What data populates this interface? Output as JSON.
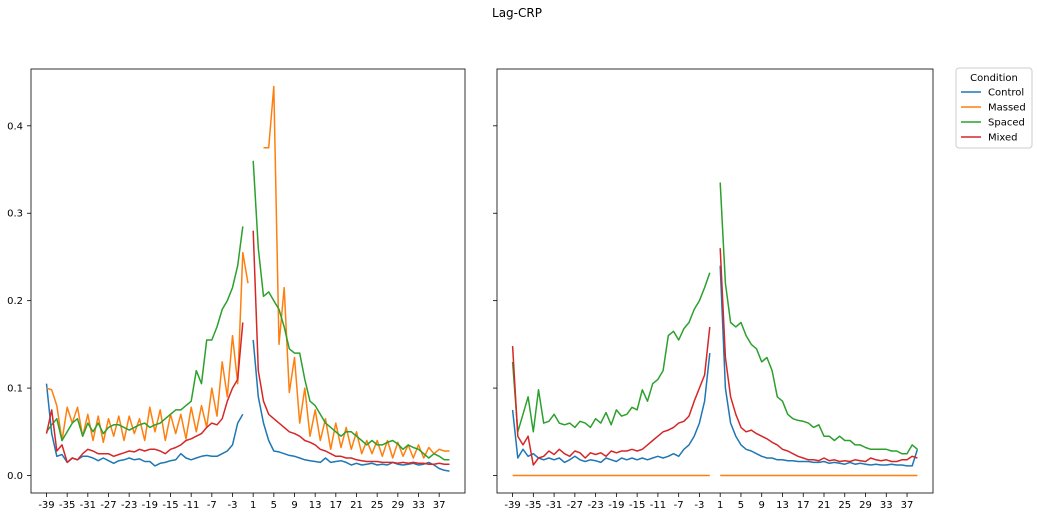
{
  "figure": {
    "title": "Lag-CRP"
  },
  "legend": {
    "title": "Condition",
    "placement": "outside upper-right"
  },
  "chart_data": [
    {
      "type": "line",
      "title": "",
      "xlabel": "",
      "ylabel": "",
      "x": [
        -39,
        -38,
        -37,
        -36,
        -35,
        -34,
        -33,
        -32,
        -31,
        -30,
        -29,
        -28,
        -27,
        -26,
        -25,
        -24,
        -23,
        -22,
        -21,
        -20,
        -19,
        -18,
        -17,
        -16,
        -15,
        -14,
        -13,
        -12,
        -11,
        -10,
        -9,
        -8,
        -7,
        -6,
        -5,
        -4,
        -3,
        -2,
        -1,
        0,
        1,
        2,
        3,
        4,
        5,
        6,
        7,
        8,
        9,
        10,
        11,
        12,
        13,
        14,
        15,
        16,
        17,
        18,
        19,
        20,
        21,
        22,
        23,
        24,
        25,
        26,
        27,
        28,
        29,
        30,
        31,
        32,
        33,
        34,
        35,
        36,
        37,
        38,
        39
      ],
      "xlim": [
        -42,
        42
      ],
      "xticks": [
        -39,
        -35,
        -31,
        -27,
        -23,
        -19,
        -15,
        -11,
        -7,
        -3,
        1,
        5,
        9,
        13,
        17,
        21,
        25,
        29,
        33,
        37
      ],
      "ylim": [
        -0.02,
        0.465
      ],
      "yticks": [
        0.0,
        0.1,
        0.2,
        0.3,
        0.4
      ],
      "ytick_labels": [
        "0.0",
        "0.1",
        "0.2",
        "0.3",
        "0.4"
      ],
      "grid": false,
      "series": [
        {
          "name": "Control",
          "color": "#1f77b4",
          "values": [
            0.105,
            0.048,
            0.022,
            0.024,
            0.015,
            0.02,
            0.018,
            0.022,
            0.022,
            0.02,
            0.017,
            0.02,
            0.017,
            0.014,
            0.017,
            0.018,
            0.02,
            0.018,
            0.019,
            0.016,
            0.016,
            0.011,
            0.014,
            0.015,
            0.017,
            0.018,
            0.025,
            0.02,
            0.018,
            0.02,
            0.022,
            0.023,
            0.022,
            0.022,
            0.025,
            0.028,
            0.035,
            0.06,
            0.07,
            null,
            0.155,
            0.09,
            0.06,
            0.04,
            0.028,
            0.027,
            0.025,
            0.023,
            0.022,
            0.02,
            0.018,
            0.017,
            0.016,
            0.015,
            0.02,
            0.015,
            0.016,
            0.017,
            0.015,
            0.012,
            0.014,
            0.012,
            0.013,
            0.014,
            0.012,
            0.013,
            0.012,
            0.015,
            0.013,
            0.012,
            0.013,
            0.014,
            0.012,
            0.013,
            0.015,
            0.012,
            0.008,
            0.006,
            0.005
          ]
        },
        {
          "name": "Massed",
          "color": "#ff7f0e",
          "values": [
            0.1,
            0.098,
            0.08,
            0.04,
            0.078,
            0.06,
            0.078,
            0.045,
            0.07,
            0.04,
            0.068,
            0.038,
            0.065,
            0.045,
            0.068,
            0.04,
            0.068,
            0.048,
            0.065,
            0.04,
            0.078,
            0.05,
            0.075,
            0.04,
            0.07,
            0.048,
            0.07,
            0.042,
            0.078,
            0.05,
            0.08,
            0.055,
            0.1,
            0.068,
            0.13,
            0.09,
            0.16,
            0.105,
            0.255,
            0.22,
            null,
            null,
            0.375,
            0.375,
            0.445,
            0.15,
            0.215,
            0.095,
            0.135,
            0.06,
            0.1,
            0.045,
            0.075,
            0.04,
            0.065,
            0.03,
            0.06,
            0.032,
            0.055,
            0.03,
            0.05,
            0.025,
            0.04,
            0.025,
            0.04,
            0.022,
            0.04,
            0.02,
            0.038,
            0.022,
            0.035,
            0.02,
            0.035,
            0.02,
            0.032,
            0.025,
            0.03,
            0.028,
            0.028
          ]
        },
        {
          "name": "Spaced",
          "color": "#2ca02c",
          "values": [
            0.05,
            0.058,
            0.065,
            0.04,
            0.05,
            0.06,
            0.065,
            0.045,
            0.06,
            0.05,
            0.06,
            0.048,
            0.055,
            0.058,
            0.058,
            0.055,
            0.052,
            0.055,
            0.058,
            0.06,
            0.055,
            0.058,
            0.06,
            0.065,
            0.07,
            0.075,
            0.075,
            0.08,
            0.085,
            0.12,
            0.105,
            0.155,
            0.155,
            0.17,
            0.19,
            0.2,
            0.215,
            0.24,
            0.285,
            null,
            0.36,
            0.26,
            0.205,
            0.21,
            0.2,
            0.19,
            0.17,
            0.145,
            0.14,
            0.14,
            0.11,
            0.085,
            0.08,
            0.07,
            0.06,
            0.055,
            0.05,
            0.045,
            0.05,
            0.05,
            0.045,
            0.04,
            0.035,
            0.04,
            0.035,
            0.035,
            0.038,
            0.04,
            0.036,
            0.03,
            0.035,
            0.032,
            0.03,
            0.025,
            0.02,
            0.025,
            0.022,
            0.018,
            0.018
          ]
        },
        {
          "name": "Mixed",
          "color": "#d62728",
          "values": [
            0.048,
            0.075,
            0.028,
            0.035,
            0.015,
            0.02,
            0.018,
            0.025,
            0.03,
            0.028,
            0.025,
            0.025,
            0.025,
            0.022,
            0.024,
            0.026,
            0.028,
            0.027,
            0.03,
            0.028,
            0.03,
            0.03,
            0.028,
            0.025,
            0.03,
            0.032,
            0.035,
            0.04,
            0.042,
            0.045,
            0.048,
            0.055,
            0.06,
            0.058,
            0.065,
            0.085,
            0.1,
            0.11,
            0.175,
            null,
            0.28,
            0.12,
            0.085,
            0.07,
            0.065,
            0.06,
            0.055,
            0.05,
            0.048,
            0.045,
            0.04,
            0.038,
            0.035,
            0.03,
            0.028,
            0.025,
            0.022,
            0.022,
            0.02,
            0.02,
            0.018,
            0.017,
            0.016,
            0.016,
            0.016,
            0.015,
            0.015,
            0.015,
            0.014,
            0.015,
            0.014,
            0.015,
            0.014,
            0.014,
            0.013,
            0.013,
            0.014,
            0.013,
            0.013
          ]
        }
      ]
    },
    {
      "type": "line",
      "title": "",
      "xlabel": "",
      "ylabel": "",
      "x": [
        -39,
        -38,
        -37,
        -36,
        -35,
        -34,
        -33,
        -32,
        -31,
        -30,
        -29,
        -28,
        -27,
        -26,
        -25,
        -24,
        -23,
        -22,
        -21,
        -20,
        -19,
        -18,
        -17,
        -16,
        -15,
        -14,
        -13,
        -12,
        -11,
        -10,
        -9,
        -8,
        -7,
        -6,
        -5,
        -4,
        -3,
        -2,
        -1,
        0,
        1,
        2,
        3,
        4,
        5,
        6,
        7,
        8,
        9,
        10,
        11,
        12,
        13,
        14,
        15,
        16,
        17,
        18,
        19,
        20,
        21,
        22,
        23,
        24,
        25,
        26,
        27,
        28,
        29,
        30,
        31,
        32,
        33,
        34,
        35,
        36,
        37,
        38,
        39
      ],
      "xlim": [
        -42,
        42
      ],
      "xticks": [
        -39,
        -35,
        -31,
        -27,
        -23,
        -19,
        -15,
        -11,
        -7,
        -3,
        1,
        5,
        9,
        13,
        17,
        21,
        25,
        29,
        33,
        37
      ],
      "ylim": [
        -0.02,
        0.465
      ],
      "yticks": [
        0.0,
        0.1,
        0.2,
        0.3,
        0.4
      ],
      "ytick_labels": [
        "",
        "",
        "",
        "",
        ""
      ],
      "grid": false,
      "series": [
        {
          "name": "Control",
          "color": "#1f77b4",
          "values": [
            0.075,
            0.02,
            0.03,
            0.022,
            0.025,
            0.02,
            0.018,
            0.02,
            0.018,
            0.02,
            0.015,
            0.018,
            0.022,
            0.018,
            0.016,
            0.018,
            0.017,
            0.015,
            0.02,
            0.018,
            0.016,
            0.02,
            0.018,
            0.02,
            0.018,
            0.02,
            0.018,
            0.02,
            0.022,
            0.02,
            0.022,
            0.025,
            0.022,
            0.03,
            0.035,
            0.045,
            0.06,
            0.085,
            0.14,
            null,
            0.24,
            0.1,
            0.06,
            0.045,
            0.035,
            0.03,
            0.028,
            0.025,
            0.022,
            0.02,
            0.02,
            0.018,
            0.018,
            0.017,
            0.017,
            0.016,
            0.016,
            0.016,
            0.015,
            0.015,
            0.016,
            0.014,
            0.015,
            0.014,
            0.013,
            0.015,
            0.013,
            0.014,
            0.013,
            0.012,
            0.013,
            0.012,
            0.012,
            0.013,
            0.012,
            0.012,
            0.011,
            0.011,
            0.03
          ]
        },
        {
          "name": "Massed",
          "color": "#ff7f0e",
          "values": [
            0,
            0,
            0,
            0,
            0,
            0,
            0,
            0,
            0,
            0,
            0,
            0,
            0,
            0,
            0,
            0,
            0,
            0,
            0,
            0,
            0,
            0,
            0,
            0,
            0,
            0,
            0,
            0,
            0,
            0,
            0,
            0,
            0,
            0,
            0,
            0,
            0,
            0,
            0,
            null,
            0,
            0,
            0,
            0,
            0,
            0,
            0,
            0,
            0,
            0,
            0,
            0,
            0,
            0,
            0,
            0,
            0,
            0,
            0,
            0,
            0,
            0,
            0,
            0,
            0,
            0,
            0,
            0,
            0,
            0,
            0,
            0,
            0,
            0,
            0,
            0,
            0,
            0,
            0
          ]
        },
        {
          "name": "Spaced",
          "color": "#2ca02c",
          "values": [
            0.13,
            0.05,
            0.07,
            0.09,
            0.05,
            0.098,
            0.06,
            0.062,
            0.07,
            0.06,
            0.058,
            0.06,
            0.055,
            0.062,
            0.06,
            0.055,
            0.065,
            0.06,
            0.072,
            0.058,
            0.075,
            0.068,
            0.07,
            0.078,
            0.075,
            0.098,
            0.085,
            0.105,
            0.11,
            0.12,
            0.16,
            0.165,
            0.155,
            0.168,
            0.175,
            0.19,
            0.2,
            0.215,
            0.232,
            null,
            0.335,
            0.22,
            0.175,
            0.17,
            0.175,
            0.16,
            0.15,
            0.145,
            0.13,
            0.135,
            0.12,
            0.09,
            0.085,
            0.07,
            0.065,
            0.063,
            0.062,
            0.06,
            0.055,
            0.058,
            0.045,
            0.045,
            0.04,
            0.045,
            0.04,
            0.04,
            0.035,
            0.035,
            0.032,
            0.03,
            0.03,
            0.03,
            0.03,
            0.028,
            0.028,
            0.025,
            0.025,
            0.035,
            0.03
          ]
        },
        {
          "name": "Mixed",
          "color": "#d62728",
          "values": [
            0.148,
            0.045,
            0.035,
            0.045,
            0.012,
            0.02,
            0.022,
            0.028,
            0.024,
            0.03,
            0.025,
            0.022,
            0.028,
            0.026,
            0.02,
            0.026,
            0.024,
            0.026,
            0.022,
            0.028,
            0.026,
            0.028,
            0.028,
            0.03,
            0.028,
            0.03,
            0.035,
            0.04,
            0.045,
            0.05,
            0.052,
            0.055,
            0.06,
            0.062,
            0.068,
            0.085,
            0.1,
            0.115,
            0.17,
            null,
            0.26,
            0.135,
            0.09,
            0.07,
            0.055,
            0.05,
            0.052,
            0.048,
            0.045,
            0.042,
            0.038,
            0.035,
            0.03,
            0.028,
            0.025,
            0.022,
            0.02,
            0.018,
            0.018,
            0.017,
            0.02,
            0.017,
            0.018,
            0.016,
            0.017,
            0.016,
            0.018,
            0.017,
            0.016,
            0.02,
            0.018,
            0.017,
            0.018,
            0.016,
            0.016,
            0.018,
            0.018,
            0.022,
            0.02
          ]
        }
      ]
    }
  ]
}
